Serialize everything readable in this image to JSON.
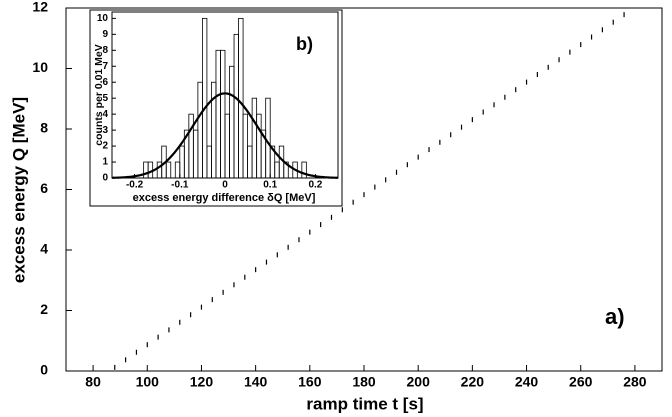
{
  "chart_data": [
    {
      "type": "scatter",
      "x_label": "ramp time t [s]",
      "y_label": "excess energy Q [MeV]",
      "annotation": "a)",
      "color": "#000000",
      "x": [
        88,
        92,
        96,
        100,
        104,
        108,
        112,
        116,
        120,
        124,
        128,
        132,
        136,
        140,
        144,
        148,
        152,
        156,
        160,
        164,
        168,
        172,
        176,
        180,
        184,
        188,
        192,
        196,
        200,
        204,
        208,
        212,
        216,
        220,
        224,
        228,
        232,
        236,
        240,
        244,
        248,
        252,
        256,
        260,
        264,
        268,
        272,
        276
      ],
      "values": [
        0.12,
        0.37,
        0.62,
        0.87,
        1.12,
        1.36,
        1.61,
        1.86,
        2.11,
        2.36,
        2.6,
        2.85,
        3.1,
        3.35,
        3.6,
        3.84,
        4.09,
        4.34,
        4.59,
        4.84,
        5.08,
        5.33,
        5.58,
        5.83,
        6.08,
        6.32,
        6.57,
        6.82,
        7.07,
        7.32,
        7.56,
        7.81,
        8.06,
        8.31,
        8.56,
        8.8,
        9.05,
        9.3,
        9.55,
        9.8,
        10.04,
        10.29,
        10.54,
        10.79,
        11.04,
        11.28,
        11.53,
        11.78
      ],
      "xlim": [
        70,
        290
      ],
      "xticks": [
        80,
        100,
        120,
        140,
        160,
        180,
        200,
        220,
        240,
        260,
        280
      ],
      "ylim": [
        0,
        12
      ],
      "yticks": [
        0,
        2,
        4,
        6,
        8,
        10,
        12
      ]
    },
    {
      "type": "histogram",
      "x_label": "excess energy difference δQ [MeV]",
      "y_label": "counts per 0.01 MeV",
      "annotation": "b)",
      "color": "#000000",
      "bins": [
        -0.25,
        -0.24,
        -0.23,
        -0.22,
        -0.21,
        -0.2,
        -0.19,
        -0.18,
        -0.17,
        -0.16,
        -0.15,
        -0.14,
        -0.13,
        -0.12,
        -0.11,
        -0.1,
        -0.09,
        -0.08,
        -0.07,
        -0.06,
        -0.05,
        -0.04,
        -0.03,
        -0.02,
        -0.01,
        0,
        0.01,
        0.02,
        0.03,
        0.04,
        0.05,
        0.06,
        0.07,
        0.08,
        0.09,
        0.1,
        0.11,
        0.12,
        0.13,
        0.14,
        0.15,
        0.16,
        0.17,
        0.18,
        0.19,
        0.2,
        0.21,
        0.22,
        0.23,
        0.24,
        0.25
      ],
      "values": [
        0,
        0,
        0,
        0,
        0,
        0,
        0,
        1,
        1,
        0,
        1,
        2,
        1,
        0,
        1,
        2,
        3,
        4,
        3,
        6,
        10,
        2,
        6,
        8,
        8,
        4,
        7,
        9,
        10,
        4,
        2,
        5,
        4,
        3,
        5,
        2,
        1,
        2,
        1,
        0,
        1,
        0,
        1,
        0,
        0,
        0,
        0,
        0,
        0,
        0
      ],
      "fit": {
        "amplitude": 5.3,
        "mean": 0,
        "sigma": 0.072
      },
      "xlim": [
        -0.25,
        0.25
      ],
      "xticks": [
        -0.2,
        -0.1,
        0,
        0.1,
        0.2
      ],
      "ylim": [
        0,
        10.4
      ],
      "yticks": [
        0,
        1,
        2,
        3,
        4,
        5,
        6,
        7,
        8,
        9,
        10
      ]
    }
  ]
}
